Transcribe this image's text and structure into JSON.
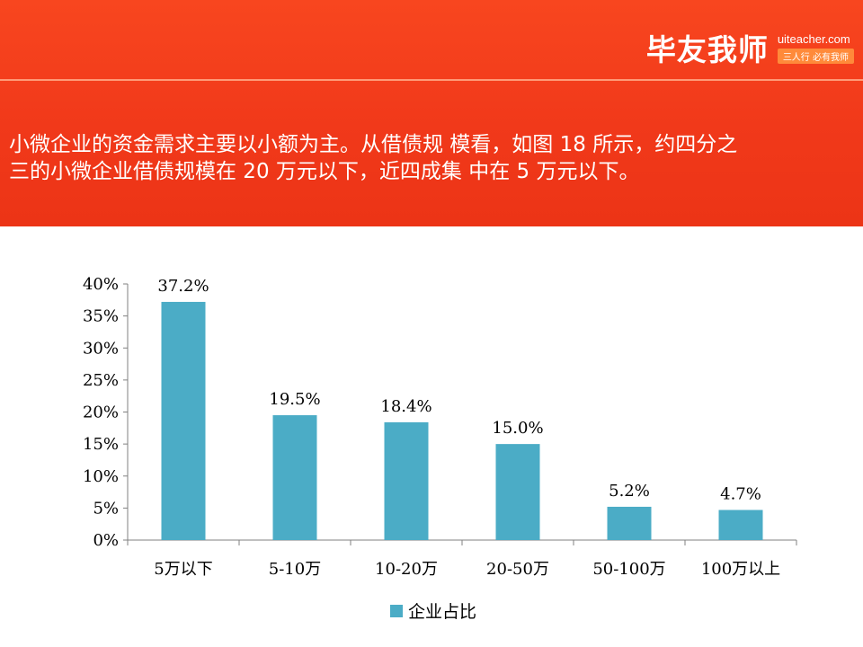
{
  "header": {
    "brand_name": "毕友我师",
    "brand_url": "uiteacher.com",
    "brand_slogan": "三人行 必有我师"
  },
  "description": {
    "line1": "小微企业的资金需求主要以小额为主。从借债规 模看，如图 18 所示，约四分之",
    "line2": "三的小微企业借债规模在 20 万元以下，近四成集 中在 5 万元以下。"
  },
  "colors": {
    "banner": "#f1391a",
    "bar": "#4bacc6"
  },
  "chart_data": {
    "type": "bar",
    "categories": [
      "5万以下",
      "5-10万",
      "10-20万",
      "20-50万",
      "50-100万",
      "100万以上"
    ],
    "series": [
      {
        "name": "企业占比",
        "values": [
          37.2,
          19.5,
          18.4,
          15.0,
          5.2,
          4.7
        ]
      }
    ],
    "data_labels": [
      "37.2%",
      "19.5%",
      "18.4%",
      "15.0%",
      "5.2%",
      "4.7%"
    ],
    "ylim": [
      0,
      40
    ],
    "yticks": [
      "0%",
      "5%",
      "10%",
      "15%",
      "20%",
      "25%",
      "30%",
      "35%",
      "40%"
    ],
    "grid": false,
    "legend_position": "bottom"
  }
}
